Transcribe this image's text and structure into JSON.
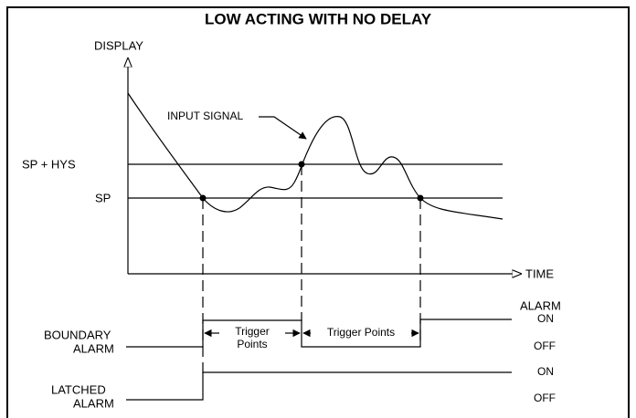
{
  "title": "LOW ACTING WITH NO DELAY",
  "axes": {
    "y_label": "DISPLAY",
    "x_label": "TIME"
  },
  "levels": {
    "upper": "SP + HYS",
    "lower": "SP"
  },
  "signal_label": "INPUT SIGNAL",
  "boundary_alarm": {
    "label_line1": "BOUNDARY",
    "label_line2": "ALARM",
    "state_header": "ALARM",
    "on": "ON",
    "off": "OFF",
    "trigger_left_line1": "Trigger",
    "trigger_left_line2": "Points",
    "trigger_right": "Trigger Points"
  },
  "latched_alarm": {
    "label_line1": "LATCHED",
    "label_line2": "ALARM",
    "on": "ON",
    "off": "OFF"
  }
}
